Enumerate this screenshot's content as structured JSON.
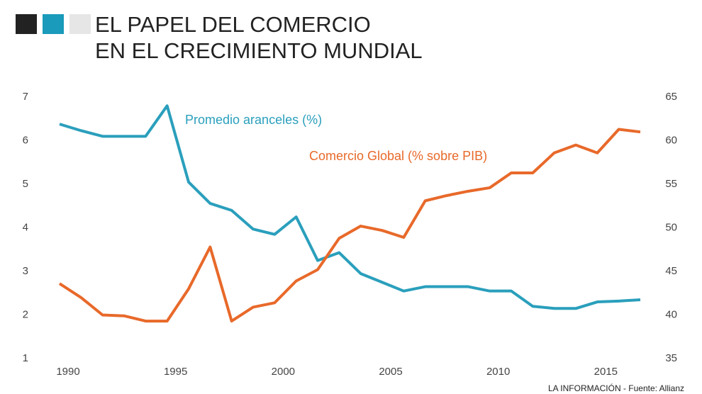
{
  "chart_data": {
    "type": "line",
    "title_lines": [
      "EL PAPEL DEL COMERCIO",
      "EN EL CRECIMIENTO MUNDIAL"
    ],
    "source": "LA INFORMACIÓN - Fuente: Allianz",
    "x": [
      1990,
      1991,
      1992,
      1993,
      1994,
      1995,
      1996,
      1997,
      1998,
      1999,
      2000,
      2001,
      2002,
      2003,
      2004,
      2005,
      2006,
      2007,
      2008,
      2009,
      2010,
      2011,
      2012,
      2013,
      2014,
      2015,
      2016,
      2017
    ],
    "xlim": [
      1990,
      2017
    ],
    "xticks": [
      1990,
      1995,
      2000,
      2005,
      2010,
      2015
    ],
    "ylim": [
      1,
      7
    ],
    "yticks": [
      1,
      2,
      3,
      4,
      5,
      6,
      7
    ],
    "y2lim": [
      35,
      65
    ],
    "y2ticks": [
      35,
      40,
      45,
      50,
      55,
      60,
      65
    ],
    "grid": false,
    "series": [
      {
        "name": "Promedio aranceles (%)",
        "color": "#2a9fbc",
        "values": [
          6.38,
          6.23,
          6.1,
          6.1,
          6.1,
          6.8,
          5.05,
          4.56,
          4.4,
          3.97,
          3.85,
          4.25,
          3.25,
          3.43,
          2.95,
          2.75,
          2.55,
          2.65,
          2.65,
          2.65,
          2.55,
          2.55,
          2.2,
          2.15,
          2.15,
          2.3,
          2.32,
          2.35
        ]
      },
      {
        "name": "Comercio Global (% sobre PIB)",
        "color": "#e8692a",
        "axis": "y2",
        "values": [
          43.6,
          42.0,
          40.0,
          39.9,
          39.3,
          39.3,
          43.0,
          47.8,
          39.3,
          40.9,
          41.4,
          43.9,
          45.2,
          48.8,
          50.2,
          49.7,
          48.9,
          53.1,
          53.7,
          54.2,
          54.6,
          56.3,
          56.3,
          58.6,
          59.5,
          58.6,
          61.3,
          61.0
        ]
      }
    ]
  }
}
